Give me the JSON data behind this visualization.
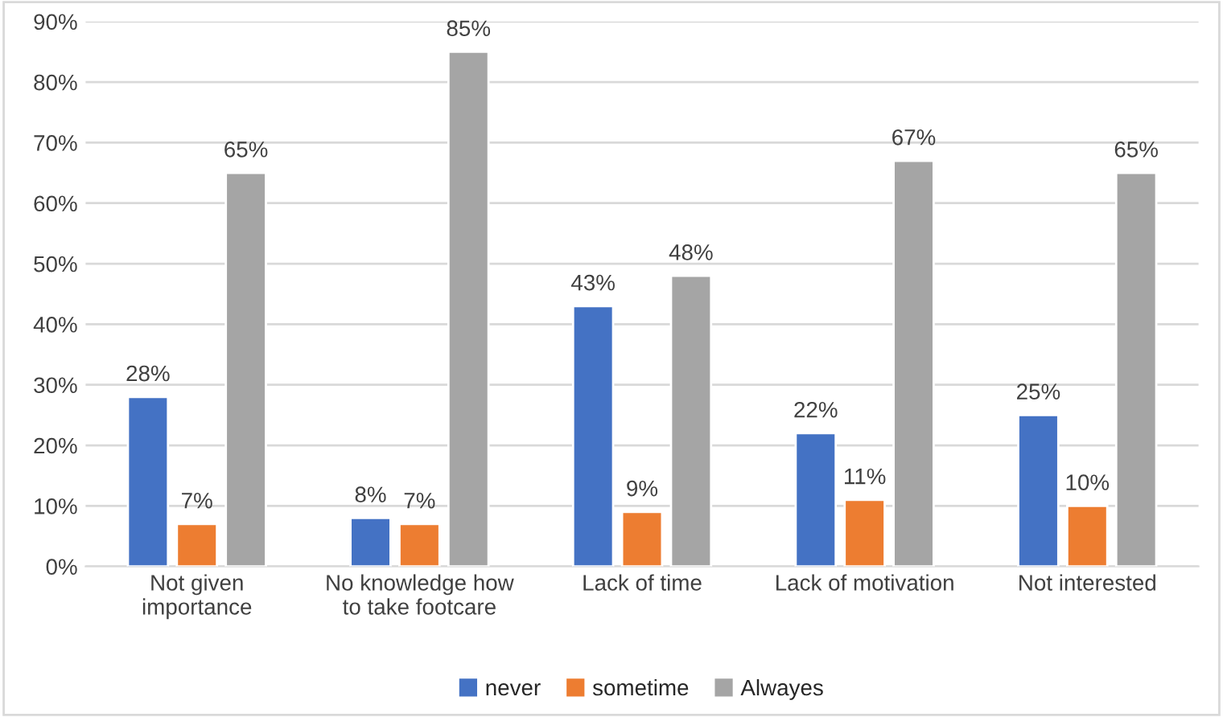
{
  "chart_data": {
    "type": "bar",
    "categories": [
      "Not given\nimportance",
      "No knowledge how\nto take footcare",
      "Lack of time",
      "Lack of motivation",
      "Not interested"
    ],
    "series": [
      {
        "name": "never",
        "color": "#4472c4",
        "values": [
          28,
          8,
          43,
          22,
          25
        ],
        "value_labels": [
          "28%",
          "8%",
          "43%",
          "22%",
          "25%"
        ]
      },
      {
        "name": "sometime",
        "color": "#ed7d31",
        "values": [
          7,
          7,
          9,
          11,
          10
        ],
        "value_labels": [
          "7%",
          "7%",
          "9%",
          "11%",
          "10%"
        ]
      },
      {
        "name": "Alwayes",
        "color": "#a5a5a5",
        "values": [
          65,
          85,
          48,
          67,
          65
        ],
        "value_labels": [
          "65%",
          "85%",
          "48%",
          "67%",
          "65%"
        ]
      }
    ],
    "ylim": [
      0,
      90
    ],
    "yticks": [
      {
        "value": 0,
        "label": "0%"
      },
      {
        "value": 10,
        "label": "10%"
      },
      {
        "value": 20,
        "label": "20%"
      },
      {
        "value": 30,
        "label": "30%"
      },
      {
        "value": 40,
        "label": "40%"
      },
      {
        "value": 50,
        "label": "50%"
      },
      {
        "value": 60,
        "label": "60%"
      },
      {
        "value": 70,
        "label": "70%"
      },
      {
        "value": 80,
        "label": "80%"
      },
      {
        "value": 90,
        "label": "90%"
      }
    ],
    "grid": "y",
    "legend": "bottom"
  }
}
